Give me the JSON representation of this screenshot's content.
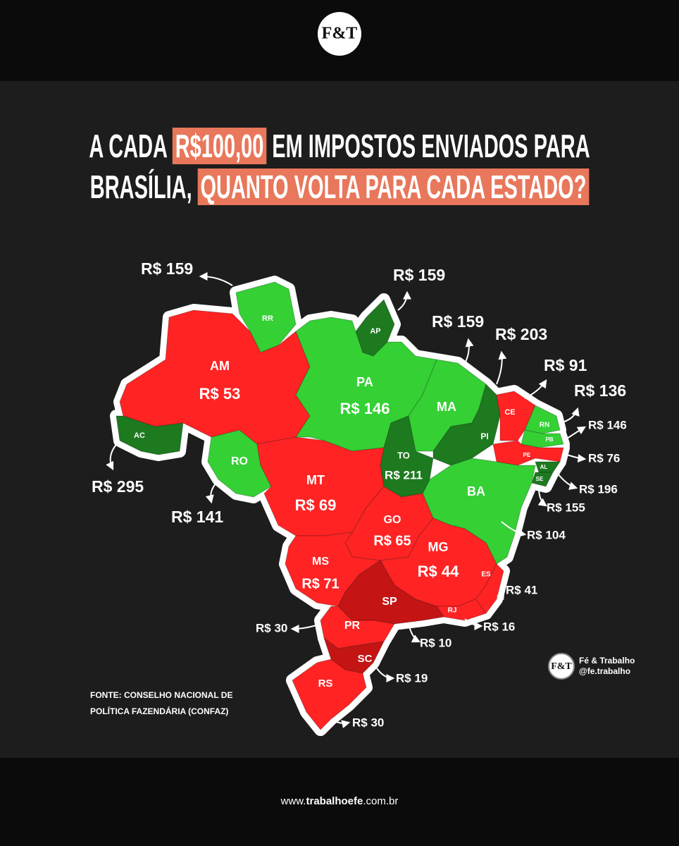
{
  "header": {
    "logo": "F&T"
  },
  "title": {
    "line1_before": "A CADA",
    "line1_highlight": "R$100,00",
    "line1_after": "EM IMPOSTOS ENVIADOS PARA",
    "line2_before": "BRASÍLIA,",
    "line2_highlight": "QUANTO VOLTA PARA CADA ESTADO?"
  },
  "states": [
    {
      "abbr": "RR",
      "value": "R$ 159"
    },
    {
      "abbr": "AP",
      "value": "R$ 159"
    },
    {
      "abbr": "AM",
      "value": "R$ 53"
    },
    {
      "abbr": "PA",
      "value": "R$ 146"
    },
    {
      "abbr": "MA",
      "value": "R$ 159"
    },
    {
      "abbr": "PI",
      "value": "R$ 203"
    },
    {
      "abbr": "CE",
      "value": "R$ 91"
    },
    {
      "abbr": "RN",
      "value": "R$ 136"
    },
    {
      "abbr": "PB",
      "value": "R$ 146"
    },
    {
      "abbr": "PE",
      "value": "R$ 76"
    },
    {
      "abbr": "AL",
      "value": "R$ 196"
    },
    {
      "abbr": "SE",
      "value": "R$ 155"
    },
    {
      "abbr": "BA",
      "value": "R$ 104"
    },
    {
      "abbr": "AC",
      "value": "R$ 295"
    },
    {
      "abbr": "RO",
      "value": "R$ 141"
    },
    {
      "abbr": "TO",
      "value": "R$ 211"
    },
    {
      "abbr": "MT",
      "value": "R$ 69"
    },
    {
      "abbr": "GO",
      "value": "R$ 65"
    },
    {
      "abbr": "MG",
      "value": "R$ 44"
    },
    {
      "abbr": "MS",
      "value": "R$ 71"
    },
    {
      "abbr": "ES",
      "value": "R$ 41"
    },
    {
      "abbr": "RJ",
      "value": "R$ 16"
    },
    {
      "abbr": "SP",
      "value": "R$ 10"
    },
    {
      "abbr": "PR",
      "value": "R$ 30"
    },
    {
      "abbr": "SC",
      "value": "R$ 19"
    },
    {
      "abbr": "RS",
      "value": "R$ 30"
    }
  ],
  "source": {
    "line1": "FONTE: CONSELHO NACIONAL DE",
    "line2": "POLÍTICA FAZENDÁRIA (CONFAZ)"
  },
  "watermark": {
    "logo": "F&T",
    "name": "Fé & Trabalho",
    "handle": "@fe.trabalho"
  },
  "footer": {
    "prefix": "www.",
    "bold": "trabalhoefe",
    "suffix": ".com.br"
  }
}
